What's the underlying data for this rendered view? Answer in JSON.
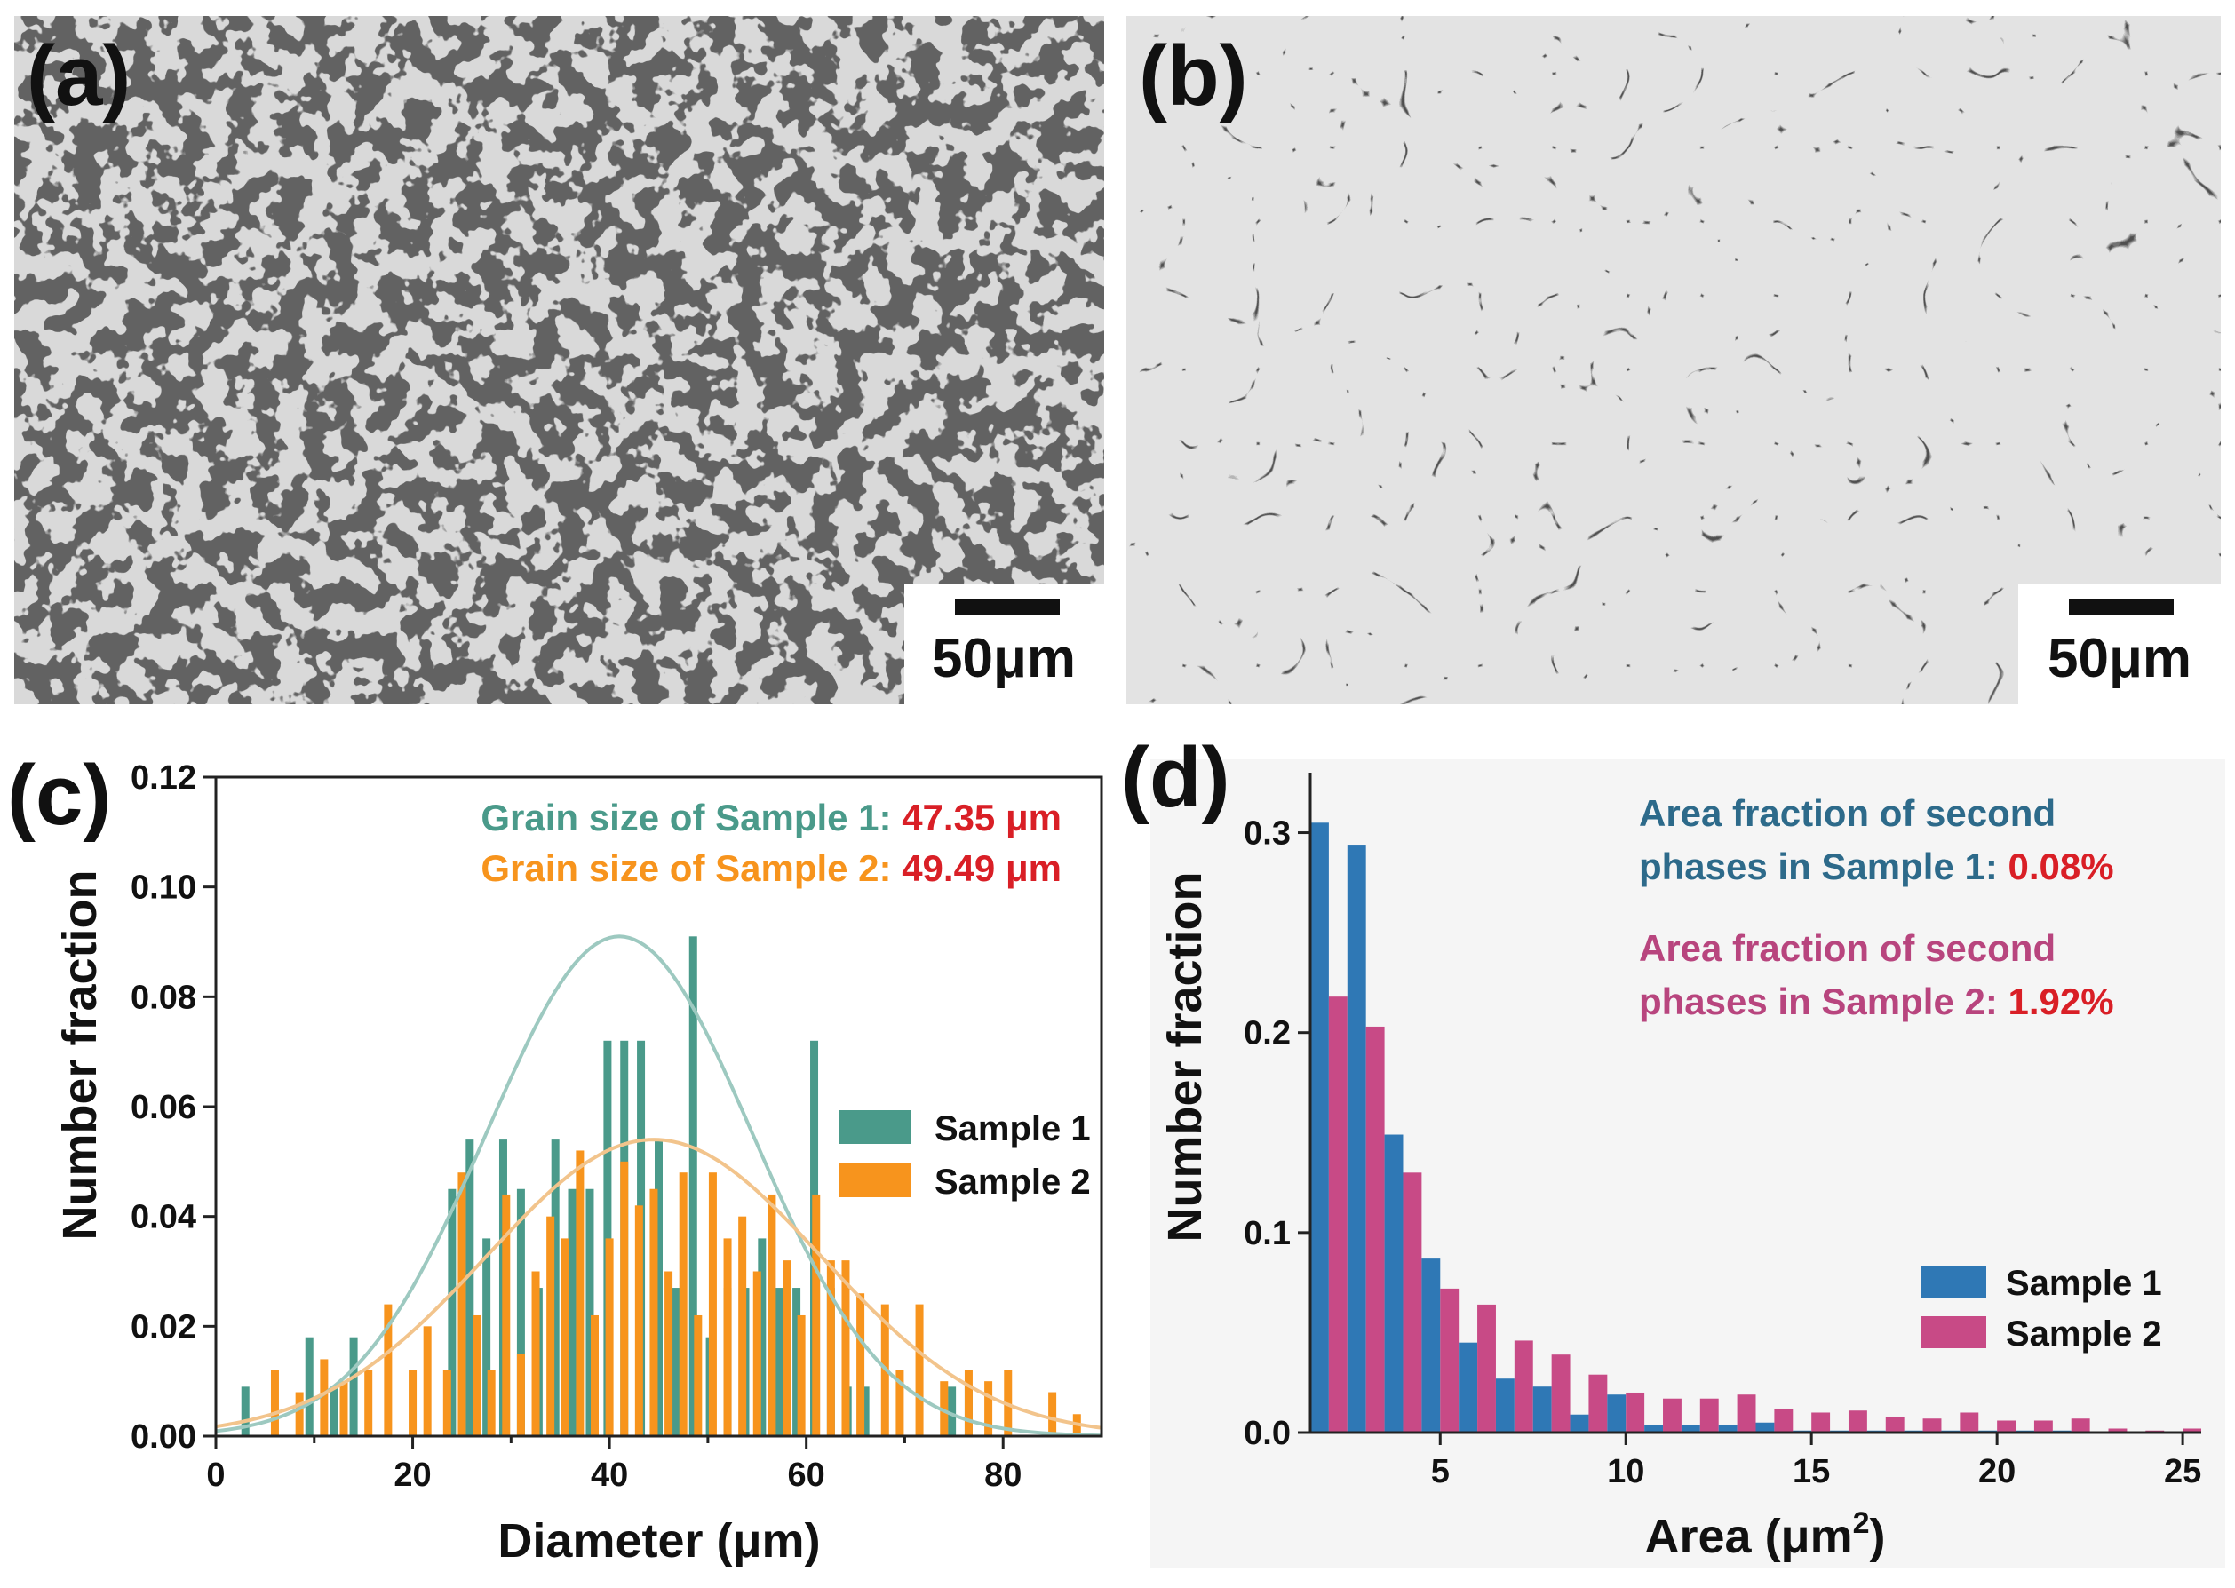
{
  "panels": {
    "a": {
      "label": "(a)",
      "scale_bar": "50μm"
    },
    "b": {
      "label": "(b)",
      "scale_bar": "50μm"
    },
    "c": {
      "label": "(c)"
    },
    "d": {
      "label": "(d)"
    }
  },
  "colors": {
    "sample1_c": "#4a9a8a",
    "sample2_c": "#f7941d",
    "fit1": "#9dc9c0",
    "fit2": "#f2c48c",
    "sample1_d": "#2f78b5",
    "sample2_d": "#c84a86",
    "value_red": "#d91f26",
    "ann_teal": "#4a9a8a",
    "ann_orange": "#f7941d",
    "ann_blue": "#2d6a8a",
    "ann_pink": "#b8457e"
  },
  "chart_data": [
    {
      "type": "bar",
      "title": "",
      "xlabel": "Diameter (μm)",
      "ylabel": "Number fraction",
      "xlim": [
        0,
        90
      ],
      "ylim": [
        0,
        0.12
      ],
      "xticks": [
        0,
        20,
        40,
        60,
        80
      ],
      "yticks": [
        "0.00",
        "0.02",
        "0.04",
        "0.06",
        "0.08",
        "0.10",
        "0.12"
      ],
      "series": [
        {
          "name": "Sample 1",
          "x": [
            3,
            9.5,
            12,
            14,
            24,
            25.8,
            27.5,
            29.2,
            31,
            32.8,
            34.5,
            36.2,
            38,
            39.8,
            41.5,
            43.2,
            45,
            46.8,
            48.5,
            50.2,
            52,
            53.8,
            55.5,
            57.2,
            59,
            60.8,
            62.5,
            64.2,
            66,
            67.8,
            69.5,
            71.2,
            73,
            74.8,
            76.5,
            78.2,
            80,
            81.8,
            83.5,
            85.2,
            87
          ],
          "values": [
            0.009,
            0.018,
            0.009,
            0.018,
            0.045,
            0.054,
            0.036,
            0.054,
            0.045,
            0.027,
            0.054,
            0.045,
            0.045,
            0.072,
            0.072,
            0.072,
            0.054,
            0.027,
            0.091,
            0.018,
            0.027,
            0.027,
            0.036,
            0.027,
            0.027,
            0.072,
            0.027,
            0.009,
            0.009,
            0,
            0,
            0,
            0,
            0.009,
            0.009,
            0,
            0,
            0,
            0,
            0,
            0
          ]
        },
        {
          "name": "Sample 2",
          "x": [
            6,
            8.5,
            11,
            13,
            15.5,
            17.5,
            20,
            21.5,
            23.5,
            25,
            26.5,
            28,
            29.5,
            31,
            32.5,
            34,
            35.5,
            37,
            38.5,
            40,
            41.5,
            43,
            44.5,
            46,
            47.5,
            49,
            50.5,
            52,
            53.5,
            55,
            56.5,
            58,
            59.5,
            61,
            62.5,
            64,
            65.5,
            68,
            69.5,
            71.5,
            74,
            76.5,
            78.5,
            80.5,
            85,
            87.5
          ],
          "values": [
            0.012,
            0.008,
            0.014,
            0.01,
            0.012,
            0.024,
            0.012,
            0.02,
            0.012,
            0.048,
            0.022,
            0.012,
            0.044,
            0.015,
            0.03,
            0.04,
            0.036,
            0.052,
            0.022,
            0.036,
            0.05,
            0.042,
            0.045,
            0.03,
            0.048,
            0.022,
            0.048,
            0.036,
            0.04,
            0.03,
            0.044,
            0.032,
            0.022,
            0.044,
            0.032,
            0.032,
            0.026,
            0.024,
            0.012,
            0.024,
            0.01,
            0.012,
            0.01,
            0.012,
            0.008,
            0.004
          ]
        }
      ],
      "fits": [
        {
          "name": "Sample 1 fit",
          "mean": 41,
          "sd": 13.5,
          "peak": 0.091
        },
        {
          "name": "Sample 2 fit",
          "mean": 44.5,
          "sd": 17,
          "peak": 0.054
        }
      ],
      "legend": [
        "Sample 1",
        "Sample 2"
      ],
      "annotations": {
        "line1_label": "Grain size of Sample 1: ",
        "line1_value": "47.35 μm",
        "line2_label": "Grain size of Sample 2: ",
        "line2_value": "49.49 μm"
      }
    },
    {
      "type": "bar",
      "title": "",
      "xlabel": "Area (μm",
      "xlabel_sup": "2",
      "xlabel_end": ")",
      "ylabel": "Number fraction",
      "xlim": [
        1.5,
        25.5
      ],
      "ylim": [
        0,
        0.33
      ],
      "xticks": [
        5,
        10,
        15,
        20,
        25
      ],
      "yticks": [
        "0.0",
        "0.1",
        "0.2",
        "0.3"
      ],
      "bin_centers": [
        2,
        3,
        4,
        5,
        6,
        7,
        8,
        9,
        10,
        11,
        12,
        13,
        14,
        15,
        16,
        17,
        18,
        19,
        20,
        21,
        22,
        23,
        24,
        25
      ],
      "series": [
        {
          "name": "Sample 1",
          "values": [
            0.305,
            0.294,
            0.149,
            0.087,
            0.045,
            0.027,
            0.023,
            0.009,
            0.019,
            0.004,
            0.004,
            0.004,
            0.005,
            0.001,
            0.001,
            0.001,
            0.001,
            0.001,
            0.001,
            0.001,
            0.001,
            0,
            0,
            0
          ]
        },
        {
          "name": "Sample 2",
          "values": [
            0.218,
            0.203,
            0.13,
            0.072,
            0.064,
            0.046,
            0.039,
            0.029,
            0.02,
            0.017,
            0.017,
            0.019,
            0.012,
            0.01,
            0.011,
            0.008,
            0.007,
            0.01,
            0.006,
            0.006,
            0.007,
            0.002,
            0.001,
            0.002
          ]
        }
      ],
      "legend": [
        "Sample 1",
        "Sample 2"
      ],
      "annotations": {
        "s1_line1": "Area fraction of second",
        "s1_line2": "phases in Sample 1: ",
        "s1_value": "0.08%",
        "s2_line1": "Area fraction of second",
        "s2_line2": "phases in Sample 2: ",
        "s2_value": "1.92%"
      }
    }
  ]
}
